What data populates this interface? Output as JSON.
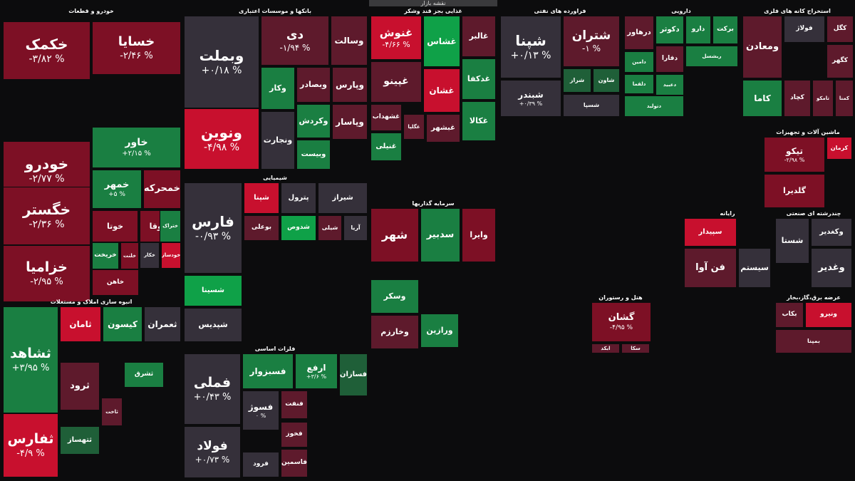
{
  "header": {
    "title": "نقشه بازار"
  },
  "colors": {
    "up_strong": "#0fa148",
    "up": "#1a7f42",
    "up_weak": "#1f5f38",
    "flat": "#35303a",
    "down_weak": "#5e1a2c",
    "down": "#7d1025",
    "down_strong": "#c8102e"
  },
  "sectors": [
    {
      "title": "خودرو و قطعات",
      "tiles": [
        {
          "name": "خکمک",
          "change": "-۳/۸۲ %",
          "c": "down"
        },
        {
          "name": "خودرو",
          "change": "-۲/۷۷ %",
          "c": "down"
        },
        {
          "name": "خگستر",
          "change": "-۲/۳۶ %",
          "c": "down"
        },
        {
          "name": "خزامیا",
          "change": "-۲/۹۵ %",
          "c": "down"
        },
        {
          "name": "خسایا",
          "change": "-۲/۴۶ %",
          "c": "down"
        },
        {
          "name": "خاور",
          "change": "+۲/۱۵ %",
          "c": "up"
        },
        {
          "name": "خمهر",
          "change": "+۵ %",
          "c": "up"
        },
        {
          "name": "خمحرکه",
          "change": "",
          "c": "down"
        },
        {
          "name": "خوتا",
          "change": "",
          "c": "down"
        },
        {
          "name": "ختوقا",
          "change": "",
          "c": "down"
        },
        {
          "name": "خریخت",
          "change": "",
          "c": "up"
        },
        {
          "name": "خلنت",
          "change": "",
          "c": "down"
        },
        {
          "name": "خاهن",
          "change": "",
          "c": "down"
        },
        {
          "name": "خکار",
          "change": "",
          "c": "flat"
        },
        {
          "name": "خودساز",
          "change": "",
          "c": "down_strong"
        },
        {
          "name": "ختراک",
          "change": "",
          "c": "up"
        }
      ]
    },
    {
      "title": "بانکها و موسسات اعتباری",
      "tiles": [
        {
          "name": "وبملت",
          "change": "+۰/۱۸ %",
          "c": "flat"
        },
        {
          "name": "ونوین",
          "change": "-۴/۹۸ %",
          "c": "down_strong"
        },
        {
          "name": "دی",
          "change": "-۱/۹۴ %",
          "c": "down_weak"
        },
        {
          "name": "وسالت",
          "change": "",
          "c": "down_weak"
        },
        {
          "name": "وکار",
          "change": "",
          "c": "up"
        },
        {
          "name": "وبصادر",
          "change": "",
          "c": "down_weak"
        },
        {
          "name": "وپارس",
          "change": "",
          "c": "down_weak"
        },
        {
          "name": "وکردش",
          "change": "",
          "c": "up"
        },
        {
          "name": "وپاسار",
          "change": "",
          "c": "down_weak"
        },
        {
          "name": "وبیست",
          "change": "",
          "c": "up"
        },
        {
          "name": "ونجارت",
          "change": "",
          "c": "flat"
        }
      ]
    },
    {
      "title": "غذایی بجز قند وشکر",
      "tiles": [
        {
          "name": "غنوش",
          "change": "-۴/۶۶ %",
          "c": "down_strong"
        },
        {
          "name": "غشاس",
          "change": "",
          "c": "up_strong"
        },
        {
          "name": "غالبر",
          "change": "",
          "c": "down_weak"
        },
        {
          "name": "غشان",
          "change": "",
          "c": "down_strong"
        },
        {
          "name": "غپینو",
          "change": "",
          "c": "down_weak"
        },
        {
          "name": "غدکفا",
          "change": "",
          "c": "up"
        },
        {
          "name": "غشهداب",
          "change": "",
          "c": "down_weak"
        },
        {
          "name": "غگلپا",
          "change": "",
          "c": "down_weak"
        },
        {
          "name": "غکالا",
          "change": "",
          "c": "up"
        },
        {
          "name": "غبشهر",
          "change": "",
          "c": "down_weak"
        },
        {
          "name": "غنیلی",
          "change": "",
          "c": "up"
        }
      ]
    },
    {
      "title": "فراورده های نفتی",
      "tiles": [
        {
          "name": "شپنا",
          "change": "+۰/۱۳ %",
          "c": "flat"
        },
        {
          "name": "شبندر",
          "change": "+۰/۳۹ %",
          "c": "flat"
        },
        {
          "name": "شتران",
          "change": "-۱ %",
          "c": "down_weak"
        },
        {
          "name": "شراز",
          "change": "",
          "c": "up_weak"
        },
        {
          "name": "شاون",
          "change": "",
          "c": "up_weak"
        },
        {
          "name": "شسپا",
          "change": "",
          "c": "flat"
        }
      ]
    },
    {
      "title": "دارویی",
      "tiles": [
        {
          "name": "درهاور",
          "change": "",
          "c": "down_weak"
        },
        {
          "name": "دکوثر",
          "change": "",
          "c": "up"
        },
        {
          "name": "دارو",
          "change": "",
          "c": "up"
        },
        {
          "name": "برکت",
          "change": "",
          "c": "up"
        },
        {
          "name": "ربشسل",
          "change": "",
          "c": "up"
        },
        {
          "name": "دامین",
          "change": "",
          "c": "up"
        },
        {
          "name": "دفارا",
          "change": "",
          "c": "down_weak"
        },
        {
          "name": "دلقما",
          "change": "",
          "c": "up"
        },
        {
          "name": "دعبید",
          "change": "",
          "c": "up"
        },
        {
          "name": "دتولید",
          "change": "",
          "c": "up"
        }
      ]
    },
    {
      "title": "استخراج کانه های فلزی",
      "tiles": [
        {
          "name": "کگل",
          "change": "",
          "c": "down_weak"
        },
        {
          "name": "فولاژ",
          "change": "",
          "c": "flat"
        },
        {
          "name": "ومعادن",
          "change": "",
          "c": "down_weak"
        },
        {
          "name": "کگهر",
          "change": "",
          "c": "down_weak"
        },
        {
          "name": "کاما",
          "change": "",
          "c": "up"
        },
        {
          "name": "کچاد",
          "change": "",
          "c": "down_weak"
        },
        {
          "name": "تامکو",
          "change": "",
          "c": "down_weak"
        },
        {
          "name": "کمنا",
          "change": "",
          "c": "down_weak"
        }
      ]
    },
    {
      "title": "شیمیایی",
      "tiles": [
        {
          "name": "فارس",
          "change": "-۰/۹۳ %",
          "c": "flat"
        },
        {
          "name": "شپنا",
          "change": "",
          "c": "down_strong"
        },
        {
          "name": "پترول",
          "change": "",
          "c": "flat"
        },
        {
          "name": "شیراز",
          "change": "",
          "c": "flat"
        },
        {
          "name": "شسینا",
          "change": "",
          "c": "up_strong"
        },
        {
          "name": "شپدیس",
          "change": "",
          "c": "flat"
        },
        {
          "name": "بوعلی",
          "change": "",
          "c": "down_weak"
        },
        {
          "name": "شدوص",
          "change": "",
          "c": "up_strong"
        },
        {
          "name": "شیلی",
          "change": "",
          "c": "down_weak"
        },
        {
          "name": "آریا",
          "change": "",
          "c": "flat"
        }
      ]
    },
    {
      "title": "سرمایه گذاریها",
      "tiles": [
        {
          "name": "شهر",
          "change": "",
          "c": "down"
        },
        {
          "name": "سدبیر",
          "change": "",
          "c": "up"
        },
        {
          "name": "وایرا",
          "change": "",
          "c": "down"
        },
        {
          "name": "وسکر",
          "change": "",
          "c": "up"
        },
        {
          "name": "وخارزم",
          "change": "",
          "c": "down_weak"
        },
        {
          "name": "ورازین",
          "change": "",
          "c": "up"
        }
      ]
    },
    {
      "title": "فلزات اساسی",
      "tiles": [
        {
          "name": "فملی",
          "change": "+۰/۴۳ %",
          "c": "flat"
        },
        {
          "name": "فولاد",
          "change": "+۰/۷۳ %",
          "c": "flat"
        },
        {
          "name": "فسبزوار",
          "change": "",
          "c": "up"
        },
        {
          "name": "ارفع",
          "change": "+۳/۶ %",
          "c": "up"
        },
        {
          "name": "فسازان",
          "change": "",
          "c": "up_weak"
        },
        {
          "name": "فسوژ",
          "change": "۰ %",
          "c": "flat"
        },
        {
          "name": "فخوز",
          "change": "",
          "c": "down_weak"
        },
        {
          "name": "فنفت",
          "change": "",
          "c": "down_weak"
        },
        {
          "name": "فاسمین",
          "change": "",
          "c": "down_weak"
        },
        {
          "name": "فرود",
          "change": "",
          "c": "flat"
        }
      ]
    },
    {
      "title": "انبوه سازی املاک و مستغلات",
      "tiles": [
        {
          "name": "ثشاهد",
          "change": "+۳/۹۵ %",
          "c": "up"
        },
        {
          "name": "ثفارس",
          "change": "-۴/۹ %",
          "c": "down_strong"
        },
        {
          "name": "ثامان",
          "change": "",
          "c": "down_strong"
        },
        {
          "name": "کیسون",
          "change": "",
          "c": "up"
        },
        {
          "name": "ثعمران",
          "change": "",
          "c": "flat"
        },
        {
          "name": "ثرود",
          "change": "",
          "c": "down_weak"
        },
        {
          "name": "ثتهساز",
          "change": "",
          "c": "up_weak"
        },
        {
          "name": "ثاخت",
          "change": "",
          "c": "down_weak"
        },
        {
          "name": "ثشرق",
          "change": "",
          "c": "up"
        }
      ]
    },
    {
      "title": "ماشین آلات و تجهیزات",
      "tiles": [
        {
          "name": "تیکو",
          "change": "-۲/۹۸ %",
          "c": "down"
        },
        {
          "name": "گلدیرا",
          "change": "",
          "c": "down"
        },
        {
          "name": "کرمان",
          "change": "",
          "c": "down_strong"
        }
      ]
    },
    {
      "title": "چندرشته ای صنعتی",
      "tiles": [
        {
          "name": "شستا",
          "change": "",
          "c": "flat"
        },
        {
          "name": "وکغدیر",
          "change": "",
          "c": "flat"
        },
        {
          "name": "وغدیر",
          "change": "",
          "c": "flat"
        }
      ]
    },
    {
      "title": "رایانه",
      "tiles": [
        {
          "name": "سپیدار",
          "change": "",
          "c": "down_strong"
        },
        {
          "name": "فن آوا",
          "change": "",
          "c": "down_weak"
        },
        {
          "name": "سیستم",
          "change": "",
          "c": "flat"
        }
      ]
    },
    {
      "title": "هتل و رستوران",
      "tiles": [
        {
          "name": "گشان",
          "change": "-۴/۹۵ %",
          "c": "down"
        },
        {
          "name": "ابکد",
          "change": "",
          "c": "down_weak"
        },
        {
          "name": "سکا",
          "change": "",
          "c": "down_weak"
        }
      ]
    },
    {
      "title": "عرضه برق،گاز،بخار",
      "tiles": [
        {
          "name": "بکاب",
          "change": "",
          "c": "down_weak"
        },
        {
          "name": "ونیرو",
          "change": "",
          "c": "down_strong"
        },
        {
          "name": "بمپنا",
          "change": "",
          "c": "down_weak"
        }
      ]
    }
  ]
}
